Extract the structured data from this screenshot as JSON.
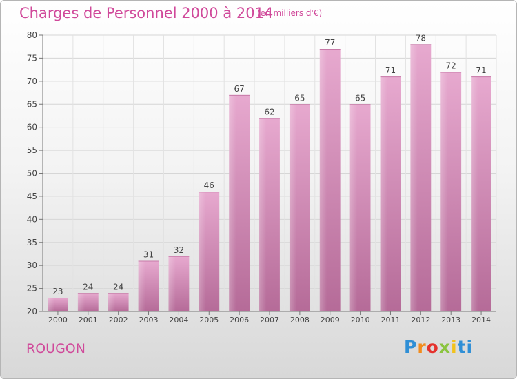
{
  "chart_data": {
    "type": "bar",
    "title": "Charges de Personnel 2000 à 2014",
    "subtitle": "(en milliers d'€)",
    "categories": [
      "2000",
      "2001",
      "2002",
      "2003",
      "2004",
      "2005",
      "2006",
      "2007",
      "2008",
      "2009",
      "2010",
      "2011",
      "2012",
      "2013",
      "2014"
    ],
    "values": [
      23,
      24,
      24,
      31,
      32,
      46,
      67,
      62,
      65,
      77,
      65,
      71,
      78,
      72,
      71
    ],
    "ylim": [
      20,
      80
    ],
    "yticks": [
      20,
      25,
      30,
      35,
      40,
      45,
      50,
      55,
      60,
      65,
      70,
      75,
      80
    ],
    "grid": true,
    "bar_color": "#dd8fbd",
    "xlabel": "",
    "ylabel": ""
  },
  "footer": {
    "commune": "ROUGON",
    "logo": {
      "p1": "P",
      "p2": "r",
      "p3": "o",
      "p4": "x",
      "p5": "i",
      "p6": "ti"
    }
  },
  "colors": {
    "accent": "#d0499a"
  }
}
